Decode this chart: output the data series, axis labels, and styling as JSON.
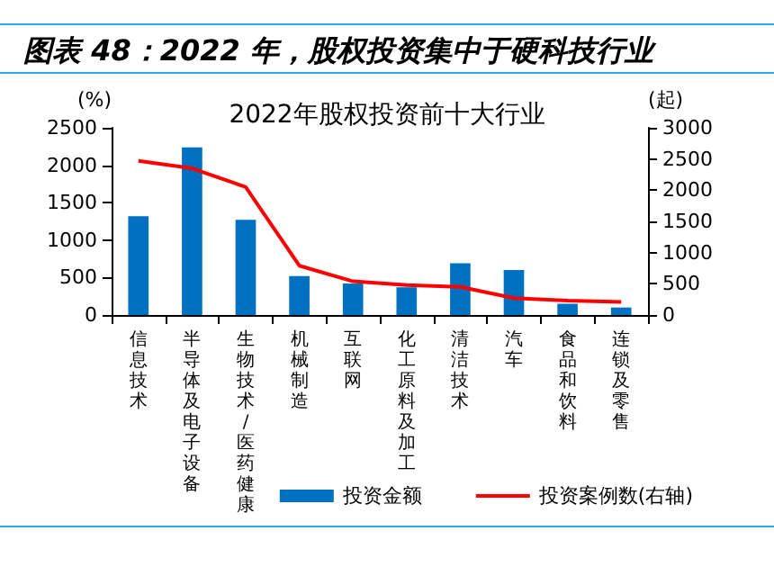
{
  "chart_data": {
    "type": "bar",
    "title": "图表 48：2022 年，股权投资集中于硬科技行业",
    "subtitle": "2022年股权投资前十大行业",
    "ylabel": "(%)",
    "y2label": "(起)",
    "categories": [
      "信息技术",
      "半导体及电子设备",
      "生物技术/医药健康",
      "机械制造",
      "互联网",
      "化工原料及加工",
      "清洁技术",
      "汽车",
      "食品和饮料",
      "连锁及零售"
    ],
    "series": [
      {
        "name": "投资金额",
        "color": "#0070c0",
        "values": [
          1320,
          2240,
          1270,
          520,
          420,
          370,
          690,
          600,
          150,
          100
        ]
      },
      {
        "name": "投资案例数(右轴)",
        "type": "line",
        "axis": "y2",
        "color": "#ff0000",
        "marker": "none",
        "values": [
          2470,
          2350,
          2050,
          790,
          540,
          480,
          450,
          270,
          230,
          210
        ]
      }
    ],
    "ylim": [
      0,
      2500
    ],
    "yticks": [
      0,
      500,
      1000,
      1500,
      2000,
      2500
    ],
    "y2lim": [
      0,
      3000
    ],
    "y2ticks": [
      0,
      500,
      1000,
      1500,
      2000,
      2500,
      3000
    ],
    "grid": false,
    "legend": "bottom right"
  }
}
